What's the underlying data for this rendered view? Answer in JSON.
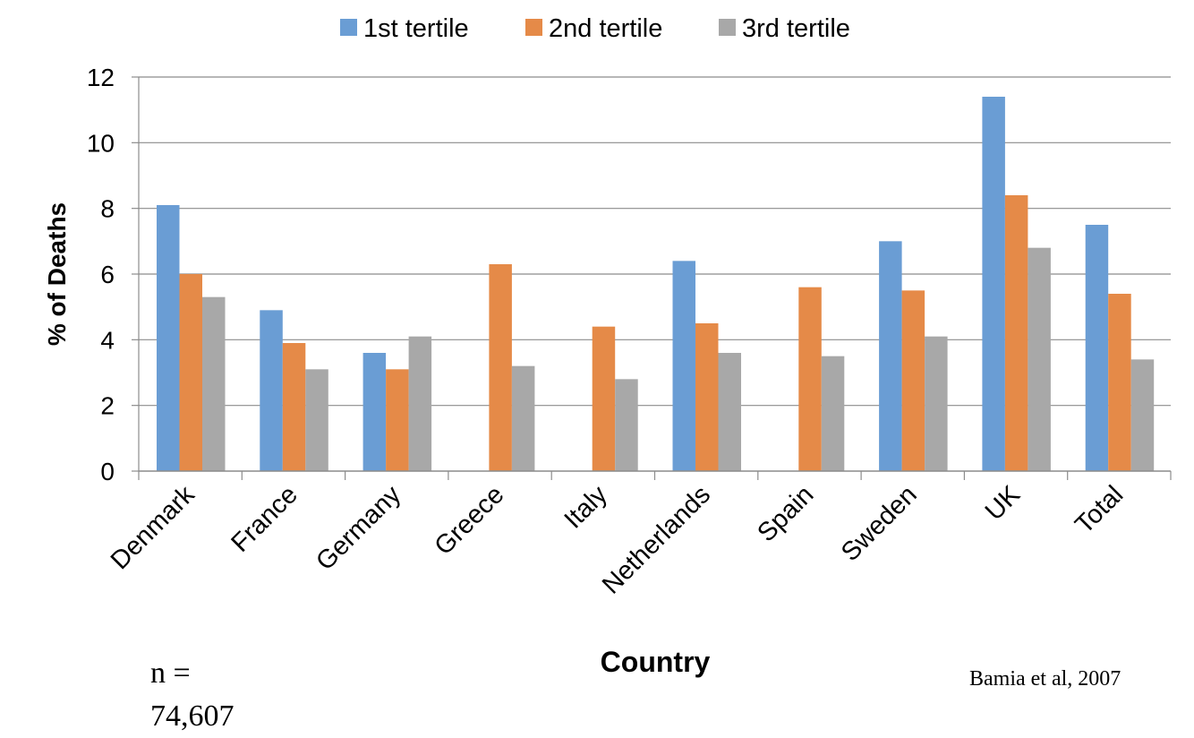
{
  "chart_data": {
    "type": "bar",
    "title": "",
    "xlabel": "Country",
    "ylabel": "% of Deaths",
    "ylim": [
      0,
      12
    ],
    "yticks": [
      0,
      2,
      4,
      6,
      8,
      10,
      12
    ],
    "grid": true,
    "legend_position": "top",
    "categories": [
      "Denmark",
      "France",
      "Germany",
      "Greece",
      "Italy",
      "Netherlands",
      "Spain",
      "Sweden",
      "UK",
      "Total"
    ],
    "series": [
      {
        "name": "1st tertile",
        "color": "#6a9dd4",
        "values": [
          8.1,
          4.9,
          3.6,
          null,
          null,
          6.4,
          null,
          7.0,
          11.4,
          7.5
        ]
      },
      {
        "name": "2nd tertile",
        "color": "#e58a48",
        "values": [
          6.0,
          3.9,
          3.1,
          6.3,
          4.4,
          4.5,
          5.6,
          5.5,
          8.4,
          5.4
        ]
      },
      {
        "name": "3rd tertile",
        "color": "#a8a8a8",
        "values": [
          5.3,
          3.1,
          4.1,
          3.2,
          2.8,
          3.6,
          3.5,
          4.1,
          6.8,
          3.4
        ]
      }
    ]
  },
  "notes": {
    "sample_size_line1": "n =",
    "sample_size_line2": "74,607",
    "source": "Bamia et al, 2007"
  }
}
